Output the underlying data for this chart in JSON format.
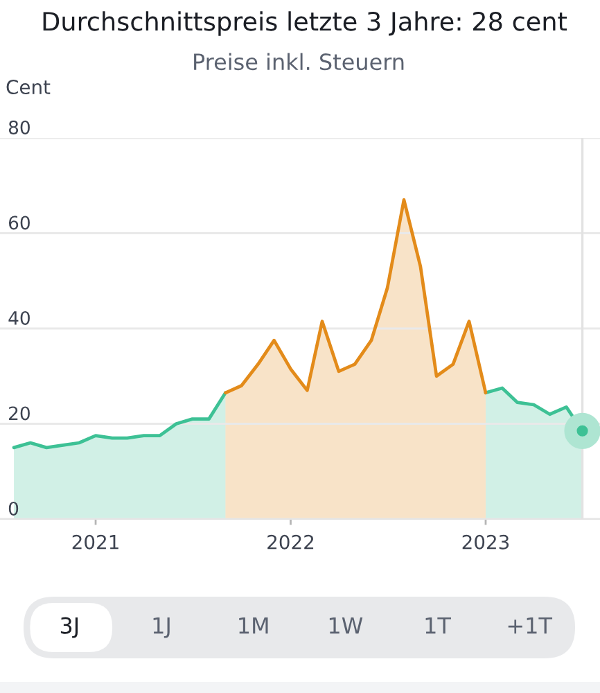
{
  "chart_data": {
    "type": "area",
    "title": "Durchschnittspreis letzte 3 Jahre: 28 cent",
    "subtitle": "Preise inkl. Steuern",
    "ylabel": "Cent",
    "x": [
      "2020-08",
      "2020-09",
      "2020-10",
      "2020-11",
      "2020-12",
      "2021-01",
      "2021-02",
      "2021-03",
      "2021-04",
      "2021-05",
      "2021-06",
      "2021-07",
      "2021-08",
      "2021-09",
      "2021-10",
      "2021-11",
      "2021-12",
      "2022-01",
      "2022-02",
      "2022-03",
      "2022-04",
      "2022-05",
      "2022-06",
      "2022-07",
      "2022-08",
      "2022-09",
      "2022-10",
      "2022-11",
      "2022-12",
      "2023-01",
      "2023-02",
      "2023-03",
      "2023-04",
      "2023-05",
      "2023-06",
      "2023-07"
    ],
    "series": [
      {
        "color": "#3dc195",
        "values": [
          15,
          16,
          15,
          15.5,
          16,
          17.5,
          17,
          17,
          17.5,
          17.5,
          20,
          21,
          21,
          26.5,
          null,
          null,
          null,
          null,
          null,
          null,
          null,
          null,
          null,
          null,
          null,
          null,
          null,
          null,
          null,
          26.5,
          27.5,
          24.5,
          24,
          22,
          23.5,
          18.5
        ]
      },
      {
        "color": "#e38b1a",
        "x": [
          "2021-09",
          "2021-10",
          "2021-11",
          "2021-12",
          "2022-01",
          "2022-02",
          "2022-03",
          "2022-04",
          "2022-05",
          "2022-06",
          "2022-07",
          "2022-08",
          "2022-09",
          "2022-10",
          "2022-11",
          "2022-12",
          "2023-01"
        ],
        "values": [
          26.5,
          28,
          32.5,
          37.5,
          31.5,
          27,
          41.5,
          31,
          32.5,
          37.5,
          48.5,
          67,
          53,
          30,
          32.5,
          41.5,
          26.5
        ]
      },
      {
        "type": "scatter",
        "x": [
          "2023-07"
        ],
        "values": [
          18.5
        ],
        "color": "#3dc195",
        "marker": "circle"
      }
    ],
    "ref_lines": [
      {
        "axis": "x",
        "value": "2023-07",
        "color": "#e2e2e2"
      }
    ],
    "xlim": [
      "2020-07-06",
      "2023-08-03"
    ],
    "xticks": [
      {
        "value": "2021-01-01",
        "label": "2021"
      },
      {
        "value": "2022-01-01",
        "label": "2022"
      },
      {
        "value": "2023-01-01",
        "label": "2023"
      }
    ],
    "ylim": [
      0,
      80
    ],
    "yticks": [
      0,
      20,
      40,
      60,
      80
    ],
    "grid": "y",
    "annotations": [
      "3J",
      "1J",
      "1M",
      "1W",
      "1T",
      "+1T"
    ]
  }
}
